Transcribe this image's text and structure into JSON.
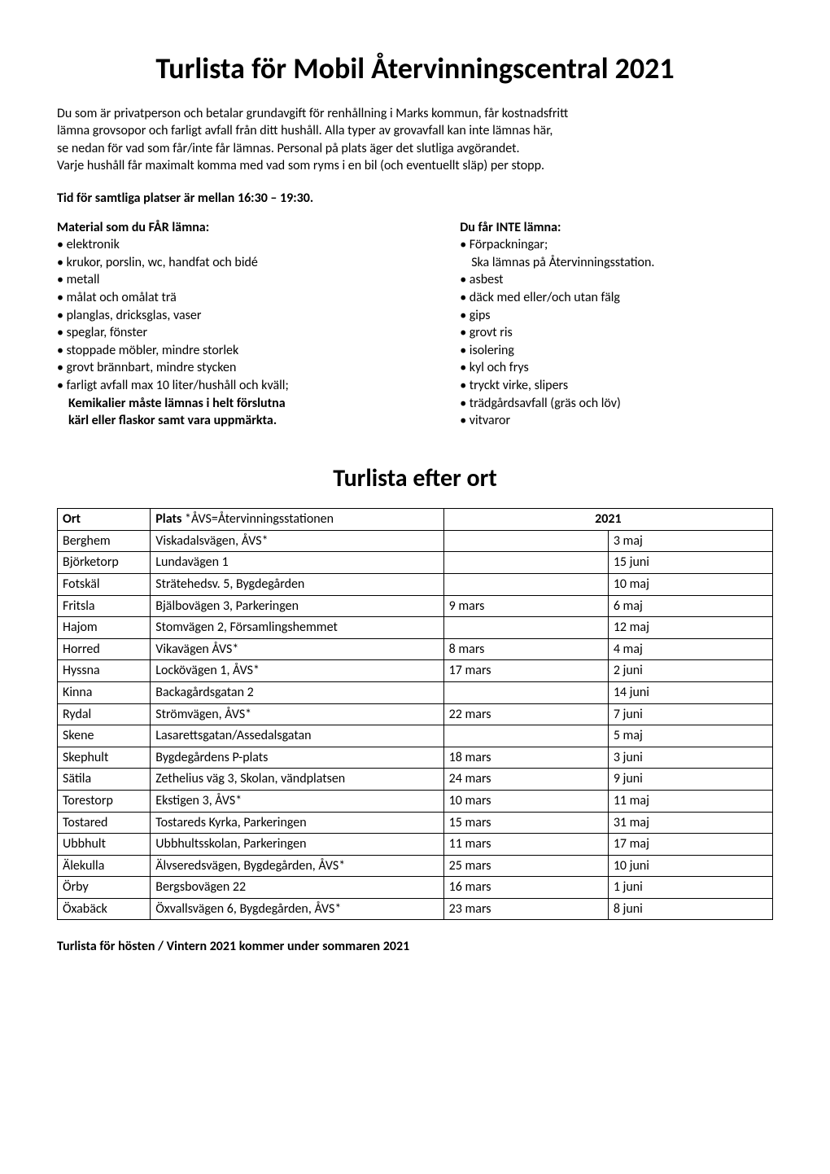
{
  "title": "Turlista för Mobil Återvinningscentral 2021",
  "intro_lines": [
    "Du som är privatperson och betalar grundavgift för renhållning i Marks kommun, får kostnadsfritt",
    "lämna grovsopor och farligt avfall från ditt hushåll. Alla typer av grovavfall kan inte lämnas här,",
    "se nedan för vad som får/inte får lämnas. Personal på plats äger det slutliga avgörandet.",
    "Varje hushåll får maximalt komma med vad som ryms i en bil (och eventuellt släp) per stopp."
  ],
  "time_line": "Tid för samtliga platser är mellan 16:30 – 19:30.",
  "allowed": {
    "heading": "Material som du FÅR lämna:",
    "items": [
      "• elektronik",
      "• krukor, porslin, wc, handfat och bidé",
      "• metall",
      "• målat och omålat trä",
      "• planglas, dricksglas, vaser",
      "• speglar, fönster",
      "• stoppade möbler, mindre storlek",
      "• grovt brännbart, mindre stycken"
    ],
    "last_item_line1": "• farligt avfall max 10 liter/hushåll och kväll;",
    "last_item_bold1": "Kemikalier måste lämnas i helt förslutna",
    "last_item_bold2": "kärl eller flaskor samt vara uppmärkta."
  },
  "not_allowed": {
    "heading": "Du får INTE lämna:",
    "first_line": "• Förpackningar;",
    "first_sub": "Ska lämnas på Återvinningsstation.",
    "items": [
      "• asbest",
      "• däck med eller/och utan fälg",
      "• gips",
      "• grovt ris",
      "• isolering",
      "• kyl och frys",
      "• tryckt virke, slipers",
      "• trädgårdsavfall (gräs och löv)",
      "• vitvaror"
    ]
  },
  "subtitle": "Turlista efter ort",
  "table": {
    "head_ort": "Ort",
    "head_plats_label": "Plats",
    "head_plats_note": "   *ÅVS=Återvinningsstationen",
    "head_year": "2021",
    "col_widths": {
      "ort": "13%",
      "plats": "41%",
      "d1": "23%",
      "d2": "23%"
    },
    "rows": [
      {
        "ort": "Berghem",
        "plats": "Viskadalsvägen, ÅVS*",
        "d1": "",
        "d2": "3 maj"
      },
      {
        "ort": "Björketorp",
        "plats": "Lundavägen 1",
        "d1": "",
        "d2": "15 juni"
      },
      {
        "ort": "Fotskäl",
        "plats": "Strätehedsv. 5, Bygdegården",
        "d1": "",
        "d2": "10 maj"
      },
      {
        "ort": "Fritsla",
        "plats": "Bjälbovägen 3, Parkeringen",
        "d1": "9 mars",
        "d2": "6 maj"
      },
      {
        "ort": "Hajom",
        "plats": "Stomvägen 2, Församlingshemmet",
        "d1": "",
        "d2": "12 maj"
      },
      {
        "ort": "Horred",
        "plats": "Vikavägen ÅVS*",
        "d1": "8 mars",
        "d2": "4 maj"
      },
      {
        "ort": "Hyssna",
        "plats": "Lockövägen 1, ÅVS*",
        "d1": "17 mars",
        "d2": "2 juni"
      },
      {
        "ort": "Kinna",
        "plats": "Backagårdsgatan 2",
        "d1": "",
        "d2": "14 juni"
      },
      {
        "ort": "Rydal",
        "plats": "Strömvägen, ÅVS*",
        "d1": "22 mars",
        "d2": "7 juni"
      },
      {
        "ort": "Skene",
        "plats": "Lasarettsgatan/Assedalsgatan",
        "d1": "",
        "d2": "5 maj"
      },
      {
        "ort": "Skephult",
        "plats": "Bygdegårdens P-plats",
        "d1": "18 mars",
        "d2": "3 juni"
      },
      {
        "ort": "Sätila",
        "plats": "Zethelius väg 3, Skolan, vändplatsen",
        "d1": "24 mars",
        "d2": "9 juni"
      },
      {
        "ort": "Torestorp",
        "plats": "Ekstigen 3, ÅVS*",
        "d1": "10 mars",
        "d2": "11 maj"
      },
      {
        "ort": "Tostared",
        "plats": "Tostareds Kyrka, Parkeringen",
        "d1": "15 mars",
        "d2": "31 maj"
      },
      {
        "ort": "Ubbhult",
        "plats": "Ubbhultsskolan, Parkeringen",
        "d1": "11 mars",
        "d2": "17 maj"
      },
      {
        "ort": "Älekulla",
        "plats": "Älvseredsvägen, Bygdegården, ÅVS*",
        "d1": "25 mars",
        "d2": "10 juni"
      },
      {
        "ort": "Örby",
        "plats": "Bergsbovägen 22",
        "d1": "16 mars",
        "d2": "1 juni"
      },
      {
        "ort": "Öxabäck",
        "plats": "Öxvallsvägen 6, Bygdegården, ÅVS*",
        "d1": "23 mars",
        "d2": "8 juni"
      }
    ]
  },
  "footer": "Turlista för hösten / Vintern 2021 kommer under sommaren 2021"
}
